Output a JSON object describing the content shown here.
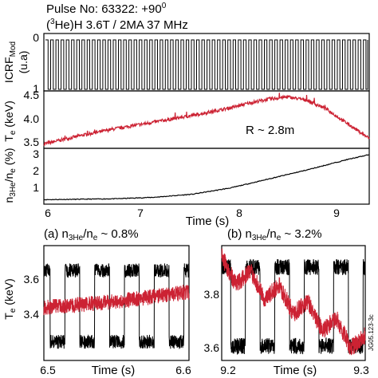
{
  "header": {
    "pulse": "Pulse No: 63322: +90",
    "pulse_sup": "0",
    "scenario_pre": "(",
    "scenario_sup": "3",
    "scenario_post": "He)H 3.6T / 2MA 37 MHz"
  },
  "figure_id": "JG05.123-3c",
  "chart_data": [
    {
      "type": "line",
      "panel": "icrf",
      "ylabel_main": "ICRF",
      "ylabel_sub": "Mod",
      "ylabel_unit": "(u.a)",
      "xlim": [
        5.85,
        9.25
      ],
      "ylim": [
        0,
        1
      ],
      "yticks": [
        {
          "v": 0,
          "label": "0"
        },
        {
          "v": 1,
          "label": "1"
        }
      ],
      "signal": "square-wave modulation between 0 and 1",
      "modulation_period_s": 0.055,
      "color": "#000000"
    },
    {
      "type": "line",
      "panel": "te",
      "ylabel": "T",
      "ylabel_sub": "e",
      "ylabel_unit": "(keV)",
      "annotation": "R ~ 2.8m",
      "xlim": [
        5.85,
        9.25
      ],
      "ylim": [
        3.5,
        4.55
      ],
      "yticks": [
        {
          "v": 3.5,
          "label": "3.5"
        },
        {
          "v": 4.0,
          "label": "4.0"
        },
        {
          "v": 4.5,
          "label": "4.5"
        }
      ],
      "color": "#cc2233",
      "series": [
        {
          "x": [
            5.85,
            6.2,
            6.6,
            7.0,
            7.4,
            7.8,
            8.0,
            8.2,
            8.4,
            8.6,
            8.8,
            9.0,
            9.25
          ],
          "y": [
            3.58,
            3.72,
            3.86,
            3.98,
            4.1,
            4.24,
            4.33,
            4.4,
            4.44,
            4.38,
            4.22,
            3.98,
            3.68
          ]
        }
      ]
    },
    {
      "type": "line",
      "panel": "ratio",
      "ylabel_pre": "n",
      "ylabel_sub1": "3He",
      "ylabel_mid": "/n",
      "ylabel_sub2": "e",
      "ylabel_unit": "(%)",
      "xlabel": "Time (s)",
      "xlim": [
        5.85,
        9.25
      ],
      "ylim": [
        0.5,
        3.6
      ],
      "xticks": [
        {
          "v": 6,
          "label": "6"
        },
        {
          "v": 7,
          "label": "7"
        },
        {
          "v": 8,
          "label": "8"
        },
        {
          "v": 9,
          "label": "9"
        }
      ],
      "yticks": [
        {
          "v": 1,
          "label": "1"
        },
        {
          "v": 2,
          "label": "2"
        },
        {
          "v": 3,
          "label": "3"
        }
      ],
      "color": "#000000",
      "series": [
        {
          "x": [
            5.85,
            6.2,
            6.6,
            7.0,
            7.4,
            7.8,
            8.2,
            8.6,
            9.0,
            9.25
          ],
          "y": [
            0.75,
            0.77,
            0.8,
            0.88,
            1.05,
            1.4,
            1.9,
            2.4,
            2.95,
            3.25
          ]
        }
      ]
    },
    {
      "type": "line",
      "panel": "zoom_a",
      "label_pre": "(a) n",
      "label_sub1": "3He",
      "label_mid": "/n",
      "label_sub2": "e",
      "label_post": " ~ 0.8%",
      "ylabel": "T",
      "ylabel_sub": "e",
      "ylabel_unit": "(keV)",
      "xlabel": "Time (s)",
      "xlim": [
        6.5,
        6.6
      ],
      "ylim": [
        3.33,
        3.7
      ],
      "xticks": [
        {
          "v": 6.5,
          "label": "6.5"
        },
        {
          "v": 6.6,
          "label": "6.6"
        }
      ],
      "yticks": [
        {
          "v": 3.4,
          "label": "3.4"
        },
        {
          "v": 3.6,
          "label": "3.6"
        }
      ],
      "series": [
        {
          "kind": "modulated",
          "color": "#000000",
          "high": 3.62,
          "low": 3.39,
          "period_s": 0.0205,
          "phase_s": 0.006
        },
        {
          "kind": "trend",
          "color": "#cc2233",
          "x": [
            6.5,
            6.55,
            6.6
          ],
          "y": [
            3.5,
            3.52,
            3.55
          ]
        }
      ]
    },
    {
      "type": "line",
      "panel": "zoom_b",
      "label_pre": "(b) n",
      "label_sub1": "3He",
      "label_mid": "/n",
      "label_sub2": "e",
      "label_post": " ~ 3.2%",
      "xlabel": "Time (s)",
      "xlim": [
        9.2,
        9.3
      ],
      "ylim": [
        3.56,
        3.88
      ],
      "xticks": [
        {
          "v": 9.2,
          "label": "9.2"
        },
        {
          "v": 9.3,
          "label": "9.3"
        }
      ],
      "yticks": [
        {
          "v": 3.6,
          "label": "3.6"
        },
        {
          "v": 3.8,
          "label": "3.8"
        }
      ],
      "series": [
        {
          "kind": "modulated",
          "color": "#000000",
          "high": 3.82,
          "low": 3.6,
          "period_s": 0.0205,
          "phase_s": 0.004
        },
        {
          "kind": "sawtooth",
          "color": "#cc2233",
          "x": [
            9.2,
            9.25,
            9.3
          ],
          "y": [
            3.82,
            3.72,
            3.6
          ],
          "swing": 0.06
        }
      ]
    }
  ]
}
